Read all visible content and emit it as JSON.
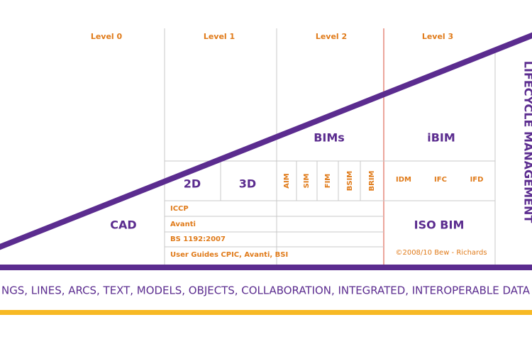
{
  "levels": [
    "Level 0",
    "Level 1",
    "Level 2",
    "Level 3"
  ],
  "level1": {
    "cells": [
      "2D",
      "3D"
    ],
    "rows": [
      "ICCP",
      "Avanti",
      "BS 1192:2007",
      "User Guides CPIC, Avanti, BSI"
    ]
  },
  "level2": {
    "title": "BIMs",
    "cells": [
      "AIM",
      "SIM",
      "FIM",
      "BSIM",
      "BRIM"
    ]
  },
  "level3": {
    "title": "iBIM",
    "cells": [
      "IDM",
      "IFC",
      "IFD"
    ],
    "standard": "ISO BIM",
    "credit": "©2008/10 Bew - Richards"
  },
  "cad": "CAD",
  "side_label": "LIFECYCLE MANAGEMENT",
  "footer": "NGS, LINES, ARCS, TEXT, MODELS, OBJECTS, COLLABORATION, INTEGRATED, INTEROPERABLE DATA"
}
